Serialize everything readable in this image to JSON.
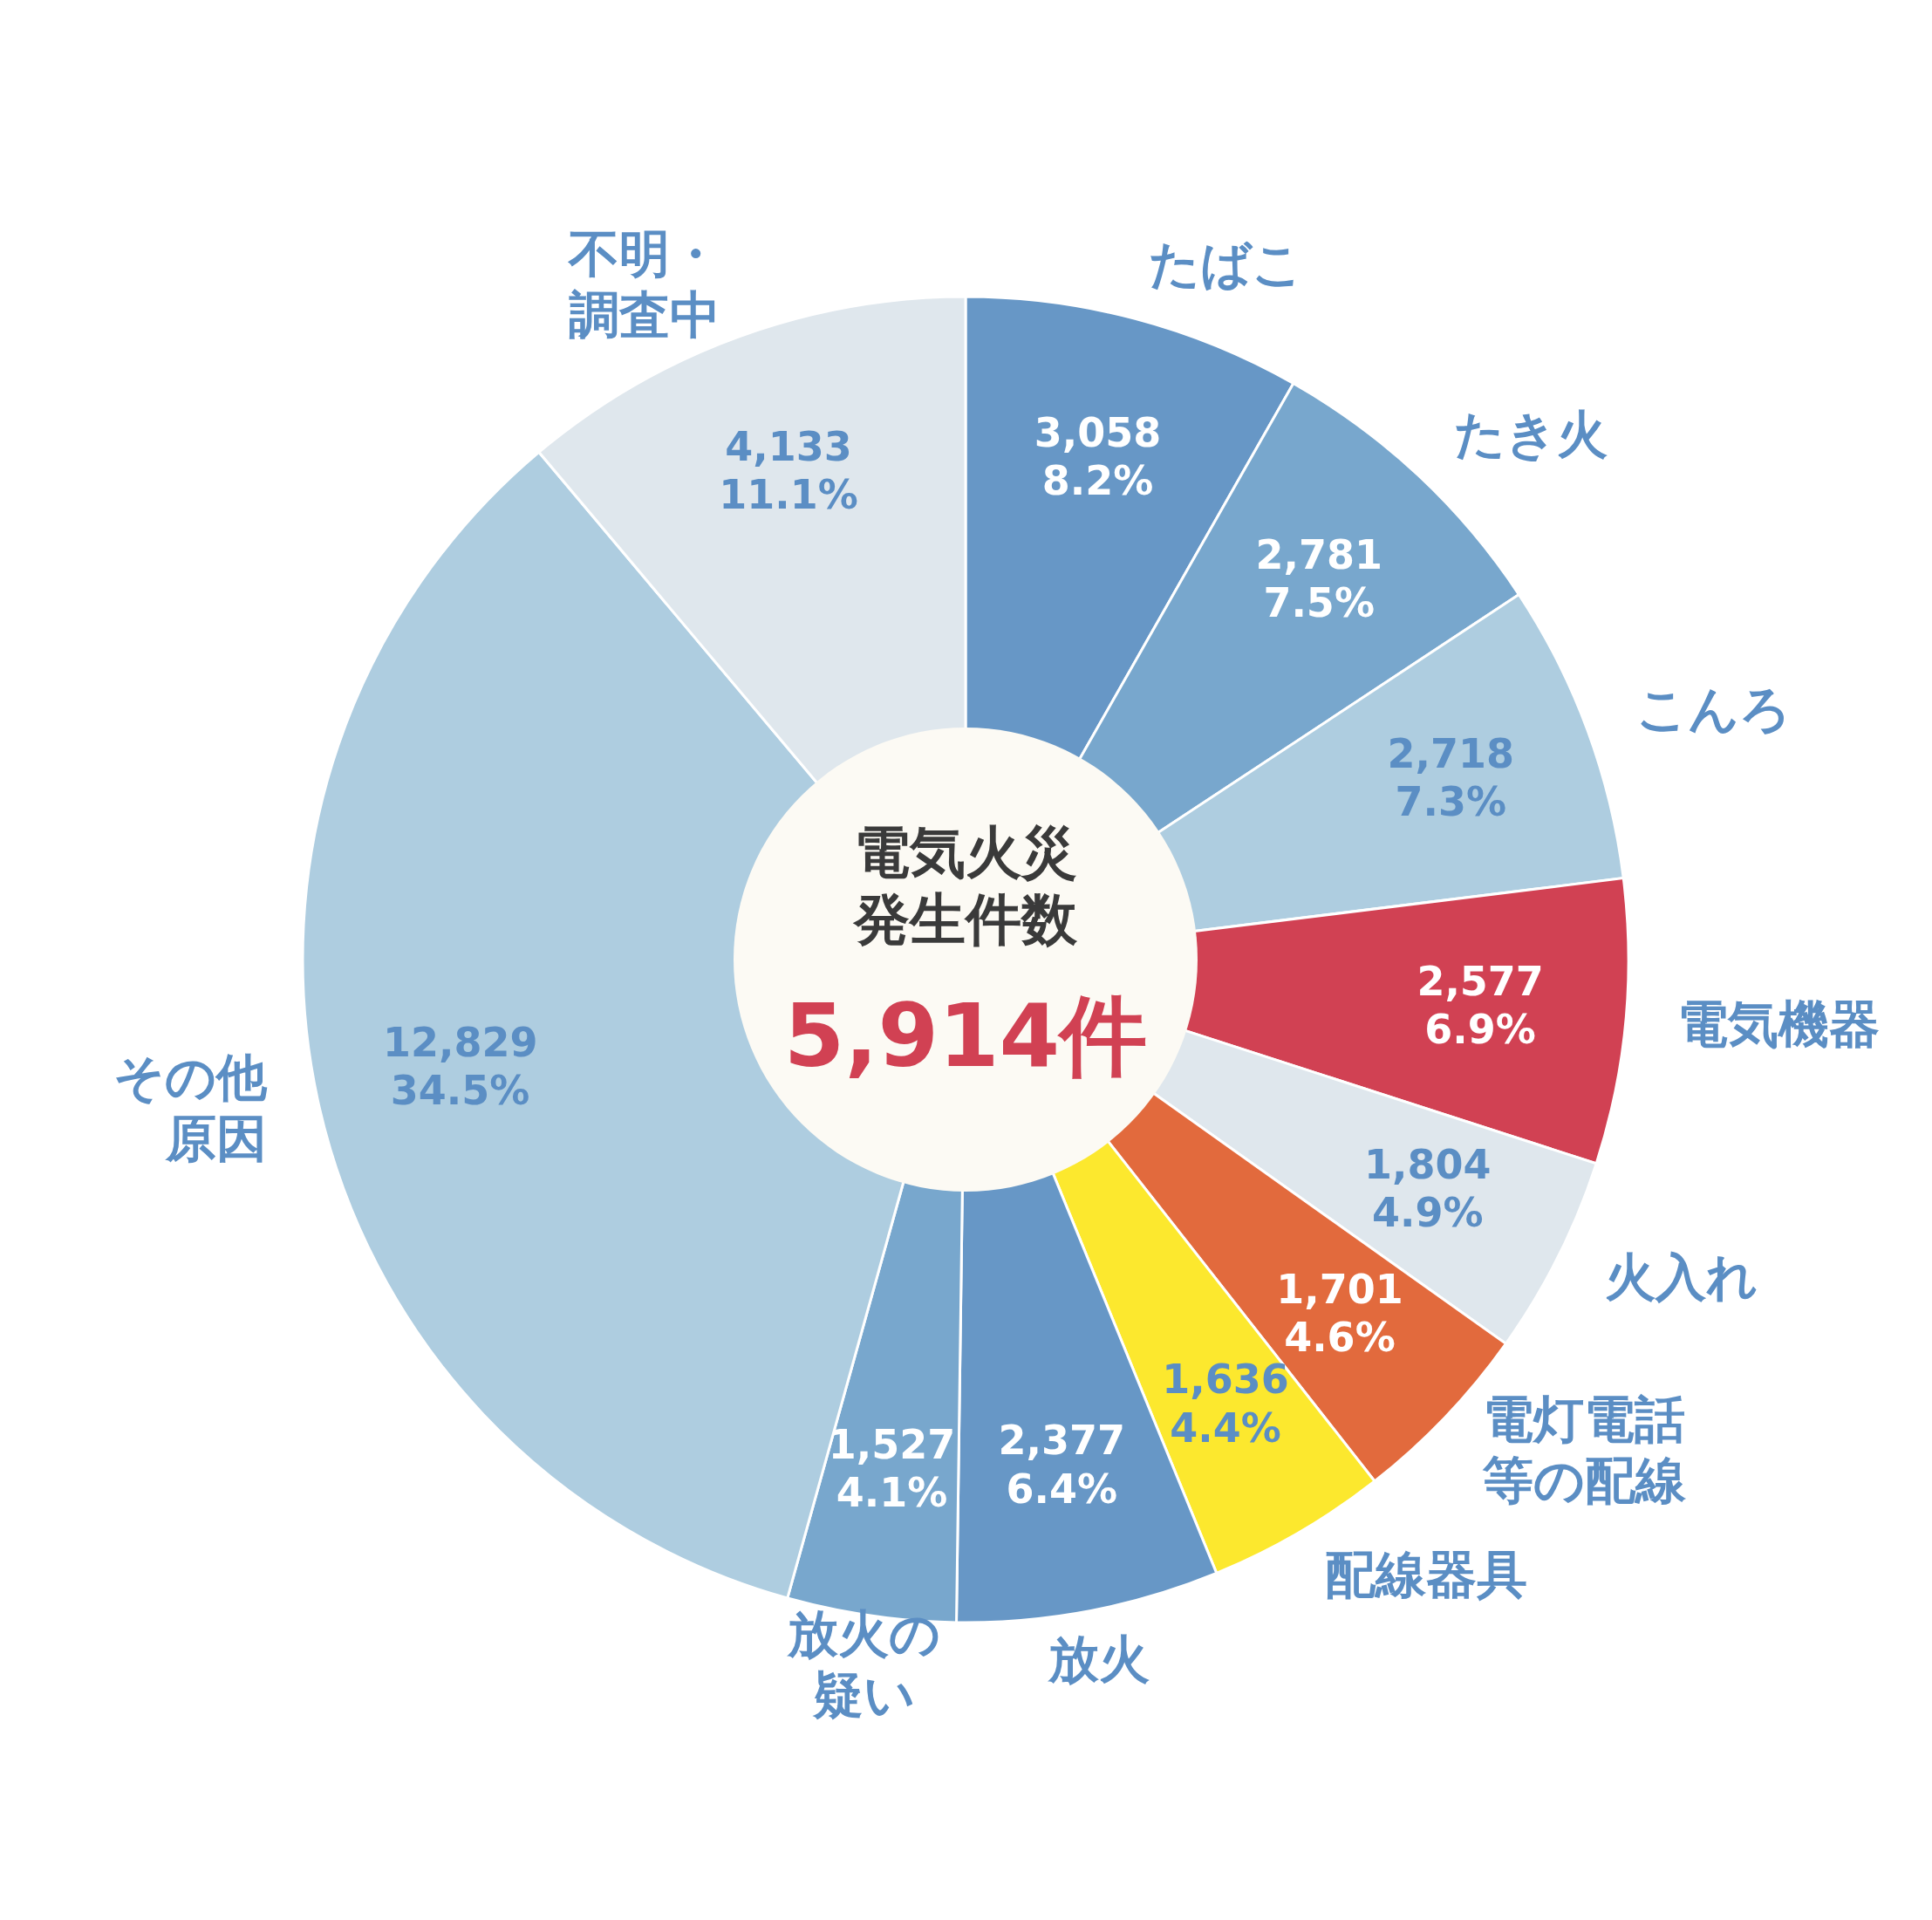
{
  "chart_data": {
    "type": "donut",
    "title": "電気火災発生件数",
    "subtitle": "5,914件",
    "categories": [
      "たばこ",
      "たき火",
      "こんろ",
      "電気機器",
      "火入れ",
      "電灯電話等の配線",
      "配線器具",
      "放火",
      "放火の疑い",
      "その他原因",
      "不明・調査中"
    ],
    "values": [
      3058,
      2781,
      2718,
      2577,
      1804,
      1701,
      1636,
      2377,
      1527,
      12829,
      4133
    ],
    "value_labels": [
      "3,058\n8.2%",
      "2,781\n7.5%",
      "2,718\n7.3%",
      "2,577\n6.9%",
      "1,804\n4.9%",
      "1,701\n4.6%",
      "1,636\n4.4%",
      "2,377\n6.4%",
      "1,527\n4.1%",
      "12,829\n34.5%",
      "4,133\n11.1%"
    ],
    "colors": [
      "#6797c6",
      "#78a7cd",
      "#aecde0",
      "#d14153",
      "#dfe7ed",
      "#e26a3d",
      "#fce82e",
      "#6797c6",
      "#78a7cd",
      "#aecde0",
      "#dfe7ed"
    ]
  }
}
